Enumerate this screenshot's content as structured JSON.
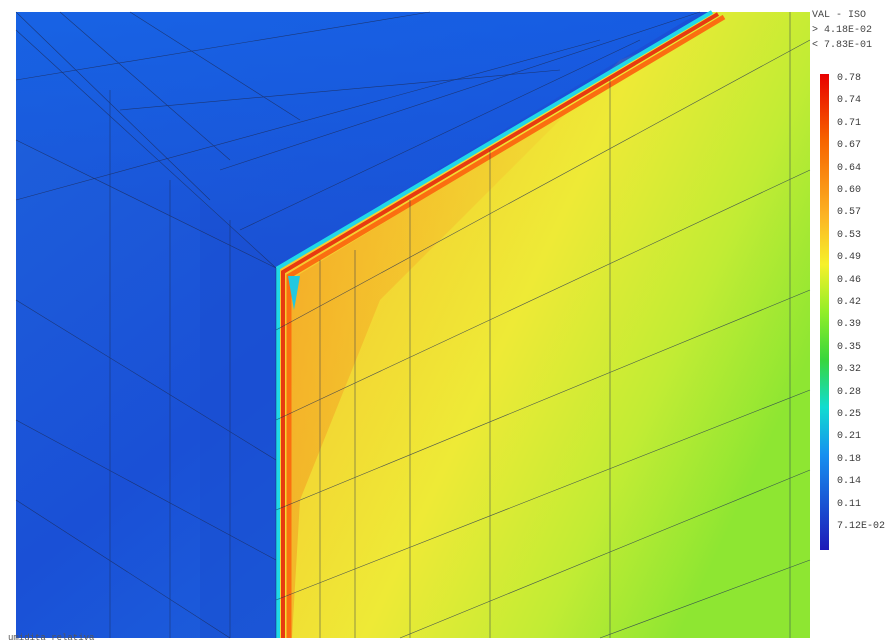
{
  "legend": {
    "title": "VAL - ISO",
    "min_label": "> 4.18E-02",
    "max_label": "< 7.83E-01",
    "ticks": [
      "0.78",
      "0.74",
      "0.71",
      "0.67",
      "0.64",
      "0.60",
      "0.57",
      "0.53",
      "0.49",
      "0.46",
      "0.42",
      "0.39",
      "0.35",
      "0.32",
      "0.28",
      "0.25",
      "0.21",
      "0.18",
      "0.14",
      "0.11",
      "7.12E-02"
    ],
    "colors": [
      "#e80000",
      "#ee2a00",
      "#f24800",
      "#f76400",
      "#fb7d0a",
      "#fc9a18",
      "#fcb524",
      "#fddc2c",
      "#f6f12a",
      "#c8f234",
      "#92ee28",
      "#5fe21c",
      "#39d63c",
      "#22cc8c",
      "#10dcd0",
      "#14b8ee",
      "#1690f0",
      "#1870ec",
      "#1a50e0",
      "#1c34d4",
      "#1d1ab8"
    ]
  },
  "caption": "umidita relativa",
  "colors": {
    "background_blue": "#1a5fdc",
    "wall_yellow": "#f0e83a",
    "wall_green": "#9ae83a",
    "interior_orange": "#f8b030",
    "edge_red": "#e83a10",
    "edge_cyan": "#20d8e8"
  }
}
